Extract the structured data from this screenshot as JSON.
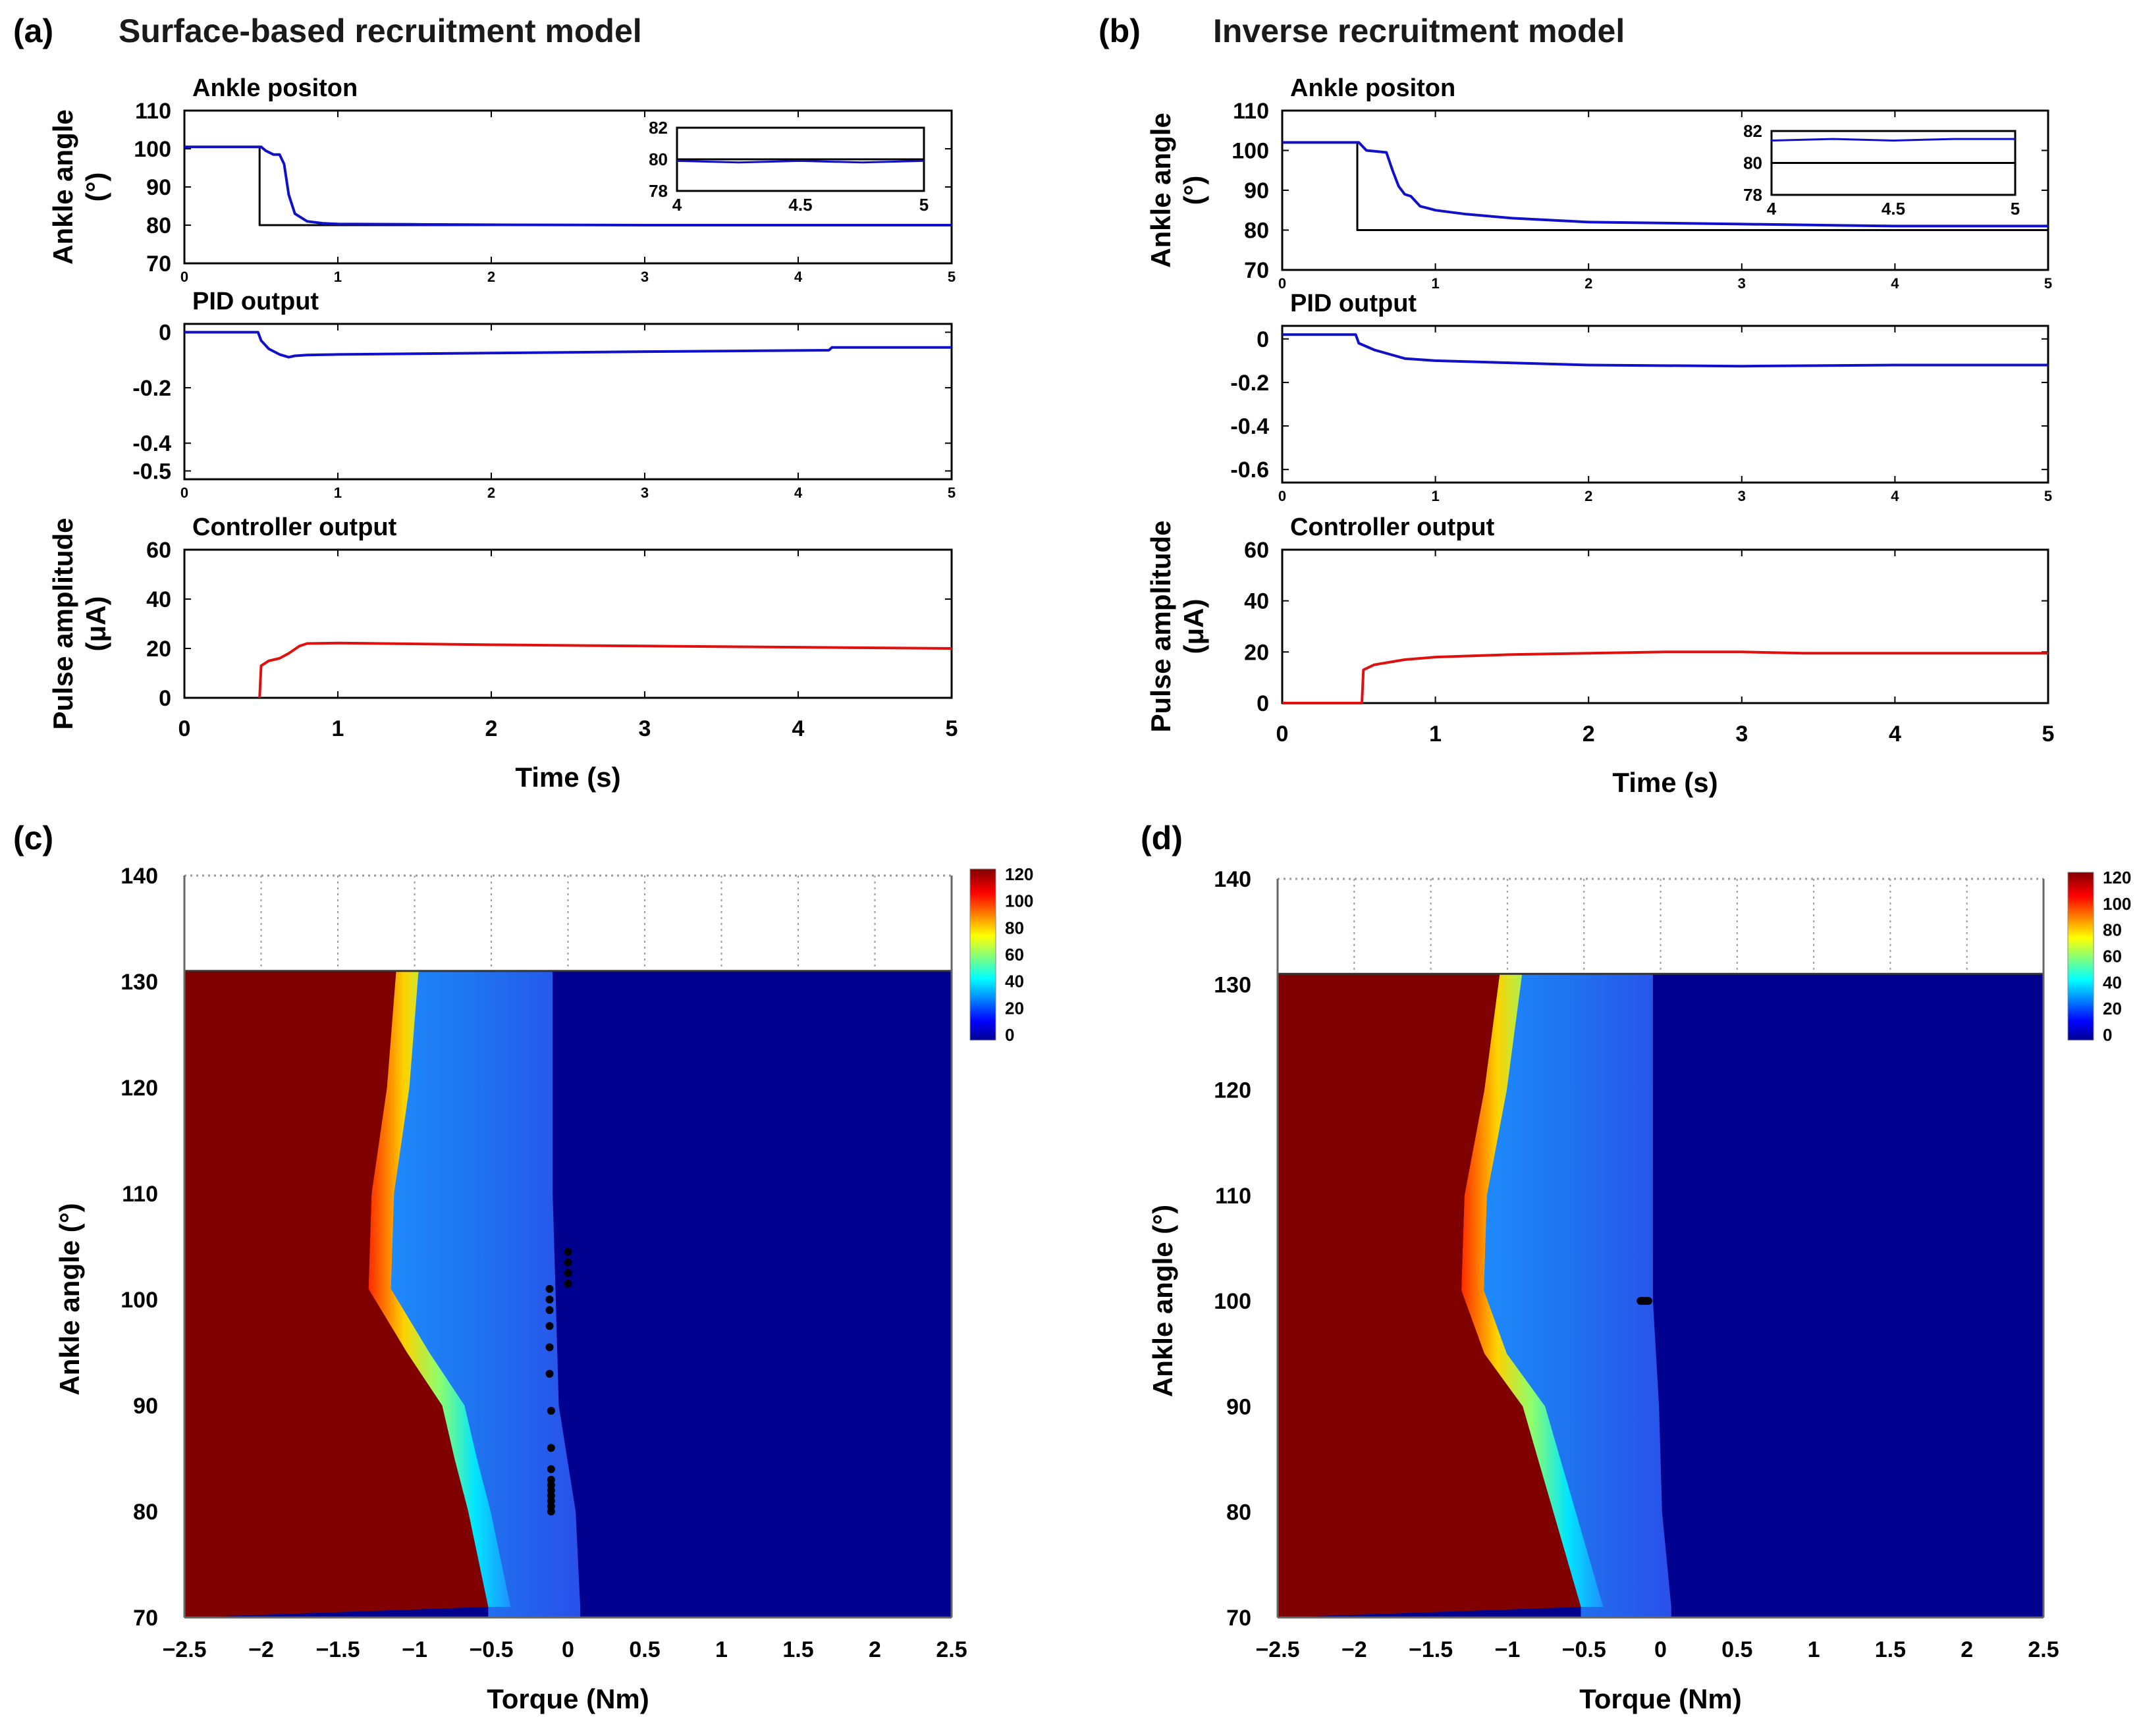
{
  "figure": {
    "panel_a": "(a)",
    "panel_b": "(b)",
    "panel_c": "(c)",
    "panel_d": "(d)",
    "title_a": "Surface-based recruitment model",
    "title_b": "Inverse recruitment model"
  },
  "colors": {
    "angle_line": "#1010c8",
    "reference_line": "#000000",
    "controller_line": "#e01010",
    "heatmap_high": "#800000",
    "heatmap_low": "#00008e"
  },
  "chart_data": [
    {
      "id": "a1",
      "type": "line",
      "subtitle": "Ankle positon",
      "ylabel": "Ankle angle (°)",
      "xlabel": "",
      "xlim": [
        0,
        5
      ],
      "ylim": [
        70,
        110
      ],
      "xticks": [
        "0",
        "1",
        "2",
        "3",
        "4",
        "5"
      ],
      "yticks": [
        "70",
        "80",
        "90",
        "100",
        "110"
      ],
      "series": [
        {
          "role": "reference",
          "color": "#000000",
          "x": [
            0,
            0.49,
            0.49,
            5
          ],
          "y": [
            100.5,
            100.5,
            80,
            80
          ]
        },
        {
          "role": "measured",
          "color": "#1010c8",
          "x": [
            0,
            0.5,
            0.53,
            0.58,
            0.62,
            0.65,
            0.68,
            0.72,
            0.76,
            0.8,
            0.9,
            1.0,
            1.5,
            2,
            3,
            4,
            5
          ],
          "y": [
            100.5,
            100.5,
            99.5,
            98.5,
            98.5,
            96,
            88,
            83,
            82,
            81,
            80.5,
            80.3,
            80.2,
            80.1,
            80,
            80,
            80
          ]
        }
      ],
      "inset": {
        "xlim": [
          4,
          5
        ],
        "ylim": [
          78,
          82
        ],
        "xticks": [
          "4",
          "4.5",
          "5"
        ],
        "yticks": [
          "78",
          "80",
          "82"
        ],
        "series": [
          {
            "role": "reference",
            "color": "#000000",
            "x": [
              4,
              5
            ],
            "y": [
              80,
              80
            ]
          },
          {
            "role": "measured",
            "color": "#1010c8",
            "x": [
              4,
              4.25,
              4.5,
              4.75,
              5
            ],
            "y": [
              79.9,
              79.8,
              79.9,
              79.8,
              79.9
            ]
          }
        ]
      }
    },
    {
      "id": "a2",
      "type": "line",
      "subtitle": "PID output",
      "ylabel": "",
      "xlabel": "",
      "xlim": [
        0,
        5
      ],
      "ylim": [
        -0.53,
        0.03
      ],
      "xticks": [
        "0",
        "1",
        "2",
        "3",
        "4",
        "5"
      ],
      "yticks": [
        "0",
        "-0.2",
        "-0.4",
        "-0.5"
      ],
      "ytick_values": [
        0,
        -0.2,
        -0.4,
        -0.5
      ],
      "series": [
        {
          "role": "pid",
          "color": "#1010c8",
          "x": [
            0,
            0.48,
            0.5,
            0.55,
            0.62,
            0.68,
            0.72,
            0.8,
            1.0,
            2,
            3,
            4.2,
            4.22,
            5
          ],
          "y": [
            0.0,
            0.0,
            -0.03,
            -0.06,
            -0.08,
            -0.09,
            -0.085,
            -0.082,
            -0.08,
            -0.075,
            -0.07,
            -0.065,
            -0.055,
            -0.055
          ]
        }
      ]
    },
    {
      "id": "a3",
      "type": "line",
      "subtitle": "Controller output",
      "ylabel": "Pulse amplitude (μA)",
      "xlabel": "Time (s)",
      "xlim": [
        0,
        5
      ],
      "ylim": [
        0,
        60
      ],
      "xticks": [
        "0",
        "1",
        "2",
        "3",
        "4",
        "5"
      ],
      "yticks": [
        "0",
        "20",
        "40",
        "60"
      ],
      "series": [
        {
          "role": "controller",
          "color": "#e01010",
          "x": [
            0.49,
            0.5,
            0.55,
            0.62,
            0.68,
            0.75,
            0.8,
            1.0,
            2,
            3,
            4,
            5
          ],
          "y": [
            0,
            13,
            15,
            16,
            18,
            21,
            22,
            22.2,
            21.5,
            21,
            20.5,
            20
          ]
        }
      ]
    },
    {
      "id": "b1",
      "type": "line",
      "subtitle": "Ankle positon",
      "ylabel": "Ankle angle (°)",
      "xlabel": "",
      "xlim": [
        0,
        5
      ],
      "ylim": [
        70,
        110
      ],
      "xticks": [
        "0",
        "1",
        "2",
        "3",
        "4",
        "5"
      ],
      "yticks": [
        "70",
        "80",
        "90",
        "100",
        "110"
      ],
      "series": [
        {
          "role": "reference",
          "color": "#000000",
          "x": [
            0,
            0.49,
            0.49,
            5
          ],
          "y": [
            102,
            102,
            80,
            80
          ]
        },
        {
          "role": "measured",
          "color": "#1010c8",
          "x": [
            0,
            0.5,
            0.55,
            0.68,
            0.72,
            0.76,
            0.8,
            0.84,
            0.9,
            0.95,
            1.0,
            1.2,
            1.5,
            2,
            3,
            4,
            5
          ],
          "y": [
            102,
            102,
            100,
            99.5,
            95,
            91,
            89,
            88.5,
            86,
            85.5,
            85,
            84,
            83,
            82,
            81.5,
            81,
            81
          ]
        }
      ],
      "inset": {
        "xlim": [
          4,
          5
        ],
        "ylim": [
          78,
          82
        ],
        "xticks": [
          "4",
          "4.5",
          "5"
        ],
        "yticks": [
          "78",
          "80",
          "82"
        ],
        "series": [
          {
            "role": "reference",
            "color": "#000000",
            "x": [
              4,
              5
            ],
            "y": [
              80,
              80
            ]
          },
          {
            "role": "measured",
            "color": "#1010c8",
            "x": [
              4,
              4.25,
              4.5,
              4.75,
              5
            ],
            "y": [
              81.4,
              81.5,
              81.4,
              81.5,
              81.5
            ]
          }
        ]
      }
    },
    {
      "id": "b2",
      "type": "line",
      "subtitle": "PID output",
      "ylabel": "",
      "xlabel": "",
      "xlim": [
        0,
        5
      ],
      "ylim": [
        -0.66,
        0.06
      ],
      "xticks": [
        "0",
        "1",
        "2",
        "3",
        "4",
        "5"
      ],
      "yticks": [
        "0",
        "-0.2",
        "-0.4",
        "-0.6"
      ],
      "ytick_values": [
        0,
        -0.2,
        -0.4,
        -0.6
      ],
      "series": [
        {
          "role": "pid",
          "color": "#1010c8",
          "x": [
            0,
            0.48,
            0.5,
            0.6,
            0.7,
            0.8,
            1.0,
            1.5,
            2,
            3,
            4,
            5
          ],
          "y": [
            0.02,
            0.02,
            -0.02,
            -0.05,
            -0.07,
            -0.09,
            -0.1,
            -0.11,
            -0.12,
            -0.125,
            -0.12,
            -0.12
          ]
        }
      ]
    },
    {
      "id": "b3",
      "type": "line",
      "subtitle": "Controller output",
      "ylabel": "Pulse amplitude (μA)",
      "xlabel": "Time (s)",
      "xlim": [
        0,
        5
      ],
      "ylim": [
        0,
        60
      ],
      "xticks": [
        "0",
        "1",
        "2",
        "3",
        "4",
        "5"
      ],
      "yticks": [
        "0",
        "20",
        "40",
        "60"
      ],
      "series": [
        {
          "role": "controller",
          "color": "#e01010",
          "x": [
            0,
            0.52,
            0.53,
            0.6,
            0.7,
            0.8,
            1.0,
            1.5,
            2,
            2.5,
            3,
            3.4,
            4,
            5
          ],
          "y": [
            0,
            0,
            13,
            15,
            16,
            17,
            18,
            19,
            19.5,
            20,
            20,
            19.5,
            19.5,
            19.5
          ]
        }
      ]
    },
    {
      "id": "c",
      "type": "heatmap",
      "xlabel": "Torque (Nm)",
      "ylabel": "Ankle angle (°)",
      "xlim": [
        -2.5,
        2.5
      ],
      "ylim": [
        70,
        140
      ],
      "xticks": [
        "−2.5",
        "−2",
        "−1.5",
        "−1",
        "−0.5",
        "0",
        "0.5",
        "1",
        "1.5",
        "2",
        "2.5"
      ],
      "yticks": [
        "70",
        "80",
        "90",
        "100",
        "110",
        "120",
        "130",
        "140"
      ],
      "data_ylim": [
        70,
        131
      ],
      "saturation_boundary": {
        "angle": [
          131,
          120,
          110,
          101,
          95,
          90,
          85,
          80,
          71
        ],
        "torque": [
          -1.12,
          -1.18,
          -1.28,
          -1.3,
          -1.05,
          -0.82,
          -0.74,
          -0.65,
          -0.52
        ]
      },
      "zero_boundary": {
        "angle": [
          131,
          110,
          100,
          90,
          80,
          71
        ],
        "torque": [
          -0.1,
          -0.1,
          -0.08,
          -0.06,
          0.05,
          0.08
        ]
      },
      "colorbar": {
        "min": 0,
        "max": 120,
        "ticks": [
          "120",
          "100",
          "80",
          "60",
          "40",
          "20",
          "0"
        ]
      },
      "trajectory": {
        "torque": [
          0,
          0,
          0,
          0,
          -0.12,
          -0.12,
          -0.12,
          -0.12,
          -0.12,
          -0.12,
          -0.11,
          -0.11,
          -0.11,
          -0.11,
          -0.11,
          -0.11,
          -0.11,
          -0.11,
          -0.11,
          -0.11
        ],
        "angle": [
          104.5,
          103.5,
          102.5,
          101.5,
          101,
          100,
          99,
          97.5,
          95.5,
          93,
          89.5,
          86,
          84,
          83,
          82.5,
          82,
          81.5,
          81,
          80.5,
          80
        ]
      }
    },
    {
      "id": "d",
      "type": "heatmap",
      "xlabel": "Torque (Nm)",
      "ylabel": "Ankle angle (°)",
      "xlim": [
        -2.5,
        2.5
      ],
      "ylim": [
        70,
        140
      ],
      "xticks": [
        "−2.5",
        "−2",
        "−1.5",
        "−1",
        "−0.5",
        "0",
        "0.5",
        "1",
        "1.5",
        "2",
        "2.5"
      ],
      "yticks": [
        "70",
        "80",
        "90",
        "100",
        "110",
        "120",
        "130",
        "140"
      ],
      "data_ylim": [
        70,
        131
      ],
      "saturation_boundary": {
        "angle": [
          131,
          120,
          110,
          101,
          95,
          90,
          85,
          80,
          71
        ],
        "torque": [
          -1.05,
          -1.15,
          -1.28,
          -1.3,
          -1.15,
          -0.9,
          -0.8,
          -0.7,
          -0.52
        ]
      },
      "zero_boundary": {
        "angle": [
          131,
          110,
          100,
          90,
          80,
          71
        ],
        "torque": [
          -0.05,
          -0.05,
          -0.05,
          -0.01,
          0.01,
          0.07
        ]
      },
      "colorbar": {
        "min": 0,
        "max": 120,
        "ticks": [
          "120",
          "100",
          "80",
          "60",
          "40",
          "20",
          "0"
        ]
      },
      "trajectory": {
        "torque": [
          -0.13,
          -0.12,
          -0.11,
          -0.1,
          -0.09,
          -0.08
        ],
        "angle": [
          100,
          100,
          100,
          100,
          100,
          100
        ]
      }
    }
  ]
}
